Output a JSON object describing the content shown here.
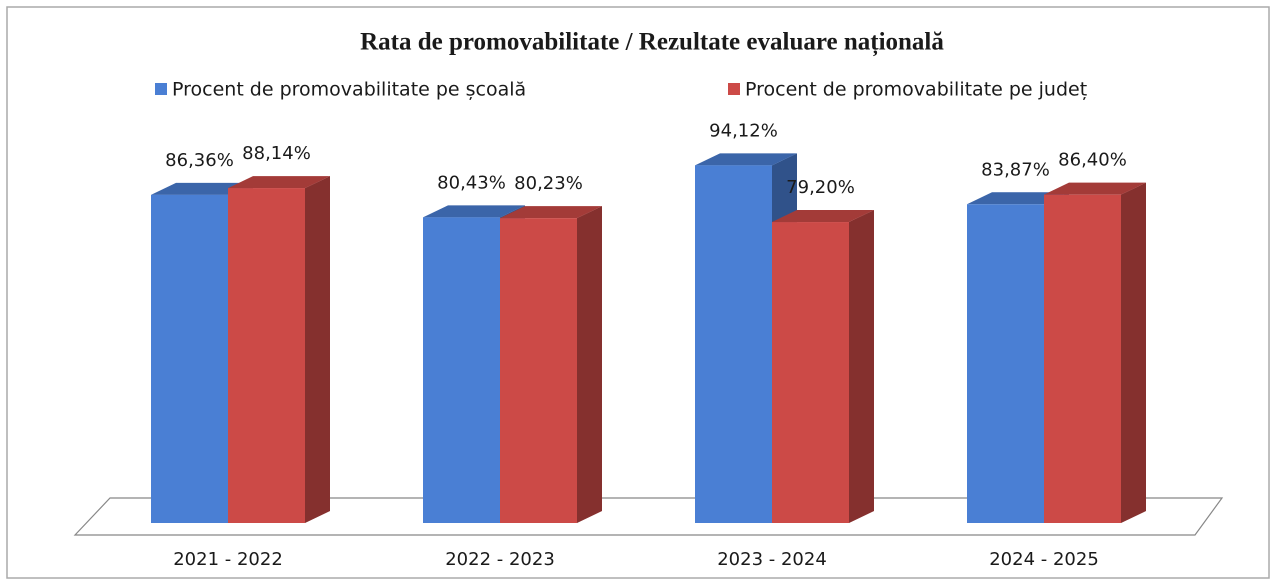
{
  "chart_data": {
    "type": "bar3d",
    "title": "Rata de promovabilitate / Rezultate evaluare națională",
    "categories": [
      "2021 - 2022",
      "2022 - 2023",
      "2023 - 2024",
      "2024 - 2025"
    ],
    "series": [
      {
        "name": "Procent de promovabilitate pe școală",
        "color": "#4a7fd4",
        "values": [
          86.36,
          80.43,
          94.12,
          83.87
        ],
        "value_labels": [
          "86,36%",
          "80,43%",
          "94,12%",
          "83,87%"
        ]
      },
      {
        "name": "Procent de promovabilitate pe județ",
        "color": "#cc4a47",
        "values": [
          88.14,
          80.23,
          79.2,
          86.4
        ],
        "value_labels": [
          "88,14%",
          "80,23%",
          "79,20%",
          "86,40%"
        ]
      }
    ],
    "ylim": [
      0,
      100
    ]
  }
}
